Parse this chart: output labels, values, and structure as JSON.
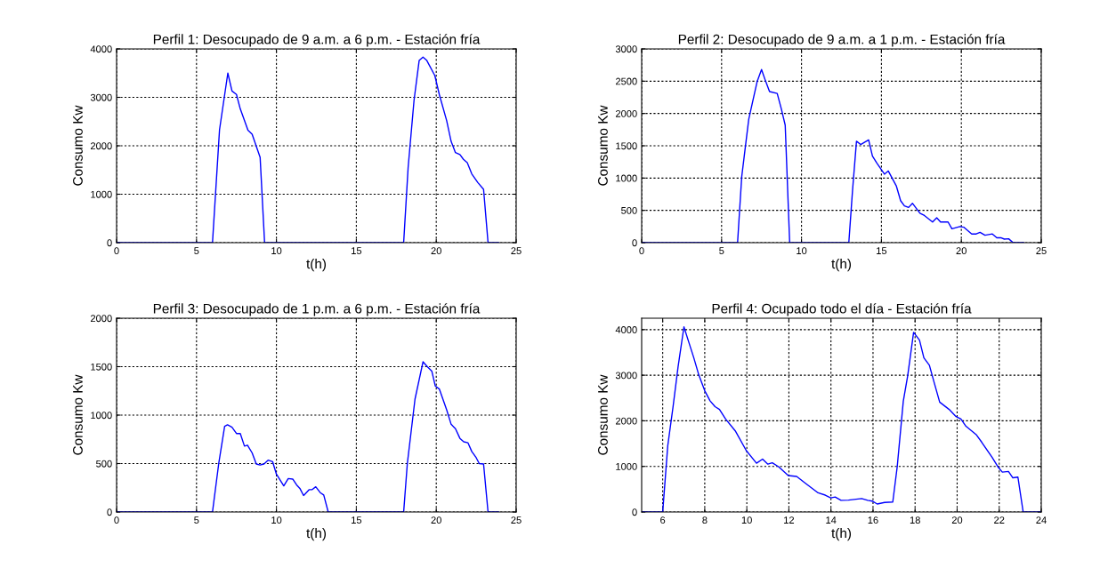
{
  "chart_data": [
    {
      "type": "line",
      "title": "Perfil 1: Desocupado de 9 a.m. a 6 p.m. - Estación fría",
      "xlabel": "t(h)",
      "ylabel": "Consumo Kw",
      "xlim": [
        0,
        25
      ],
      "ylim": [
        0,
        4000
      ],
      "xticks": [
        0,
        5,
        10,
        15,
        20,
        25
      ],
      "yticks": [
        0,
        1000,
        2000,
        3000,
        4000
      ],
      "grid": true,
      "color": "#0000ff",
      "x": [
        0,
        6.0,
        6.44,
        6.96,
        7.22,
        7.5,
        7.74,
        8.22,
        8.48,
        8.98,
        9.26,
        17.96,
        18.24,
        18.61,
        18.93,
        19.17,
        19.41,
        19.91,
        20.19,
        20.65,
        20.93,
        21.2,
        21.48,
        21.7,
        21.94,
        22.22,
        22.6,
        22.96,
        23.24,
        23.9
      ],
      "values": [
        0,
        0,
        2330,
        3500,
        3130,
        3060,
        2760,
        2320,
        2240,
        1760,
        0,
        0,
        1550,
        2940,
        3760,
        3830,
        3760,
        3450,
        3060,
        2520,
        2090,
        1860,
        1820,
        1720,
        1650,
        1420,
        1240,
        1100,
        0,
        0
      ]
    },
    {
      "type": "line",
      "title": "Perfil 2: Desocupado de 9 a.m. a 1 p.m. - Estación fría",
      "xlabel": "t(h)",
      "ylabel": "Consumo Kw",
      "xlim": [
        0,
        25
      ],
      "ylim": [
        0,
        3000
      ],
      "xticks": [
        0,
        5,
        10,
        15,
        20,
        25
      ],
      "yticks": [
        0,
        500,
        1000,
        1500,
        2000,
        2500,
        3000
      ],
      "grid": true,
      "color": "#0000ff",
      "x": [
        0,
        6.0,
        6.26,
        6.52,
        6.7,
        6.94,
        7.22,
        7.5,
        7.74,
        8.0,
        8.48,
        8.74,
        8.98,
        9.26,
        12.96,
        13.19,
        13.44,
        13.7,
        14.2,
        14.44,
        14.72,
        15.19,
        15.43,
        15.93,
        16.2,
        16.44,
        16.7,
        16.94,
        17.41,
        17.69,
        18.2,
        18.46,
        18.7,
        19.17,
        19.41,
        19.91,
        20.15,
        20.65,
        20.93,
        21.17,
        21.48,
        21.94,
        22.22,
        22.5,
        22.69,
        22.96,
        23.24,
        23.9
      ],
      "values": [
        0,
        0,
        1020,
        1550,
        1910,
        2180,
        2490,
        2680,
        2510,
        2340,
        2310,
        2070,
        1820,
        0,
        0,
        800,
        1570,
        1520,
        1590,
        1340,
        1230,
        1060,
        1110,
        880,
        650,
        570,
        545,
        610,
        455,
        420,
        320,
        385,
        320,
        320,
        215,
        250,
        240,
        135,
        135,
        160,
        115,
        135,
        75,
        75,
        55,
        60,
        0,
        0
      ]
    },
    {
      "type": "line",
      "title": "Perfil 3: Desocupado de 1 p.m. a 6 p.m. - Estación fría",
      "xlabel": "t(h)",
      "ylabel": "Consumo Kw",
      "xlim": [
        0,
        25
      ],
      "ylim": [
        0,
        2000
      ],
      "xticks": [
        0,
        5,
        10,
        15,
        20,
        25
      ],
      "yticks": [
        0,
        500,
        1000,
        1500,
        2000
      ],
      "grid": true,
      "color": "#0000ff",
      "x": [
        0,
        6.0,
        6.39,
        6.76,
        6.94,
        7.22,
        7.5,
        7.74,
        8.0,
        8.19,
        8.48,
        8.74,
        8.98,
        9.22,
        9.48,
        9.76,
        10.0,
        10.46,
        10.74,
        11.02,
        11.26,
        11.48,
        11.7,
        12.04,
        12.22,
        12.46,
        12.74,
        12.96,
        13.24,
        17.96,
        18.19,
        18.67,
        19.17,
        19.44,
        19.72,
        19.94,
        20.19,
        20.65,
        20.93,
        21.2,
        21.48,
        21.72,
        21.98,
        22.22,
        22.5,
        22.69,
        22.96,
        23.24,
        23.9
      ],
      "values": [
        0,
        0,
        500,
        885,
        900,
        875,
        810,
        810,
        680,
        690,
        610,
        495,
        485,
        495,
        535,
        520,
        390,
        270,
        345,
        340,
        280,
        240,
        170,
        230,
        230,
        260,
        200,
        175,
        0,
        0,
        500,
        1165,
        1550,
        1500,
        1455,
        1300,
        1270,
        1055,
        905,
        860,
        760,
        725,
        715,
        625,
        560,
        500,
        495,
        0,
        0
      ]
    },
    {
      "type": "line",
      "title": "Perfil 4: Ocupado todo el día - Estación fría",
      "xlabel": "t(h)",
      "ylabel": "Consumo Kw",
      "xlim": [
        5,
        24
      ],
      "ylim": [
        0,
        4250
      ],
      "xticks": [
        6,
        8,
        10,
        12,
        14,
        16,
        18,
        20,
        22,
        24
      ],
      "yticks": [
        0,
        1000,
        2000,
        3000,
        4000
      ],
      "grid": true,
      "color": "#0000ff",
      "x": [
        5,
        6,
        6.24,
        6.49,
        6.73,
        7.01,
        7.23,
        7.48,
        7.72,
        8.0,
        8.25,
        8.49,
        8.7,
        8.99,
        9.45,
        9.97,
        10.46,
        10.75,
        11.0,
        11.21,
        11.52,
        11.97,
        12.37,
        12.79,
        13.39,
        13.73,
        13.99,
        14.2,
        14.48,
        14.83,
        15.46,
        15.75,
        15.96,
        16.2,
        16.55,
        16.94,
        17.15,
        17.44,
        17.65,
        17.93,
        18.21,
        18.42,
        18.68,
        18.92,
        19.17,
        19.62,
        19.93,
        20.18,
        20.42,
        20.92,
        21.17,
        21.66,
        21.94,
        22.15,
        22.44,
        22.65,
        22.89,
        23.14,
        24
      ],
      "values": [
        0,
        0,
        1450,
        2300,
        3180,
        4060,
        3740,
        3380,
        3000,
        2660,
        2440,
        2310,
        2250,
        2040,
        1780,
        1350,
        1070,
        1160,
        1050,
        1080,
        990,
        800,
        780,
        630,
        420,
        370,
        310,
        330,
        255,
        260,
        295,
        255,
        240,
        175,
        210,
        220,
        990,
        2430,
        2990,
        3940,
        3770,
        3380,
        3220,
        2820,
        2410,
        2250,
        2100,
        2040,
        1880,
        1690,
        1530,
        1200,
        990,
        875,
        890,
        750,
        765,
        0,
        0
      ]
    }
  ]
}
